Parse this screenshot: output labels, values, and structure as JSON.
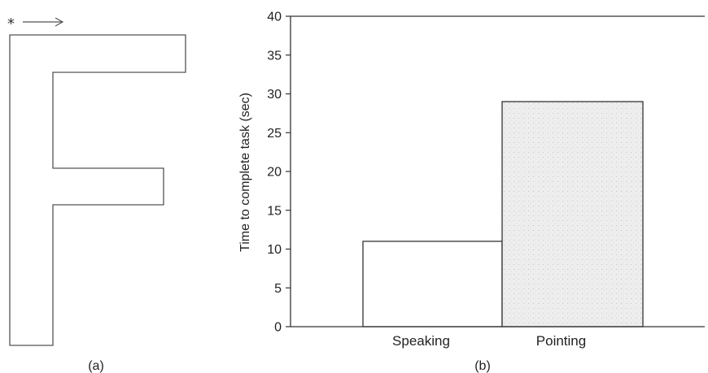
{
  "panel_a": {
    "label": "(a)",
    "start_marker": "*"
  },
  "panel_b": {
    "label": "(b)"
  },
  "colors": {
    "axis": "#333333",
    "bar_edge": "#333333",
    "speaking_fill": "#ffffff",
    "pointing_fill": "#eeeeee",
    "outline": "#555555"
  },
  "chart_data": {
    "type": "bar",
    "title": "",
    "xlabel": "",
    "ylabel": "Time to complete task (sec)",
    "categories": [
      "Speaking",
      "Pointing"
    ],
    "values": [
      11,
      29
    ],
    "ylim": [
      0,
      40
    ],
    "yticks": [
      0,
      5,
      10,
      15,
      20,
      25,
      30,
      35,
      40
    ],
    "grid": false,
    "legend": "none"
  }
}
